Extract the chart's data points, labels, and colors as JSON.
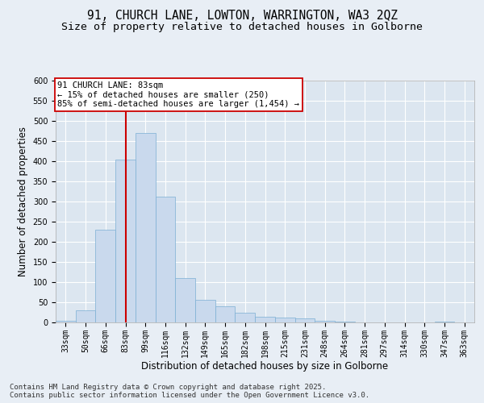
{
  "title_line1": "91, CHURCH LANE, LOWTON, WARRINGTON, WA3 2QZ",
  "title_line2": "Size of property relative to detached houses in Golborne",
  "xlabel": "Distribution of detached houses by size in Golborne",
  "ylabel": "Number of detached properties",
  "categories": [
    "33sqm",
    "50sqm",
    "66sqm",
    "83sqm",
    "99sqm",
    "116sqm",
    "132sqm",
    "149sqm",
    "165sqm",
    "182sqm",
    "198sqm",
    "215sqm",
    "231sqm",
    "248sqm",
    "264sqm",
    "281sqm",
    "297sqm",
    "314sqm",
    "330sqm",
    "347sqm",
    "363sqm"
  ],
  "values": [
    5,
    30,
    230,
    405,
    470,
    313,
    111,
    57,
    41,
    25,
    14,
    12,
    11,
    5,
    2,
    0,
    0,
    0,
    0,
    3,
    0
  ],
  "bar_color": "#c9d9ed",
  "bar_edge_color": "#7bafd4",
  "vline_x": 3,
  "vline_color": "#cc0000",
  "annotation_text": "91 CHURCH LANE: 83sqm\n← 15% of detached houses are smaller (250)\n85% of semi-detached houses are larger (1,454) →",
  "annotation_box_color": "#ffffff",
  "annotation_box_edge": "#cc0000",
  "ylim": [
    0,
    600
  ],
  "yticks": [
    0,
    50,
    100,
    150,
    200,
    250,
    300,
    350,
    400,
    450,
    500,
    550,
    600
  ],
  "bg_color": "#e8eef5",
  "plot_bg_color": "#dce6f0",
  "footer": "Contains HM Land Registry data © Crown copyright and database right 2025.\nContains public sector information licensed under the Open Government Licence v3.0.",
  "title_fontsize": 10.5,
  "subtitle_fontsize": 9.5,
  "axis_label_fontsize": 8.5,
  "tick_fontsize": 7,
  "footer_fontsize": 6.5,
  "annot_fontsize": 7.5
}
